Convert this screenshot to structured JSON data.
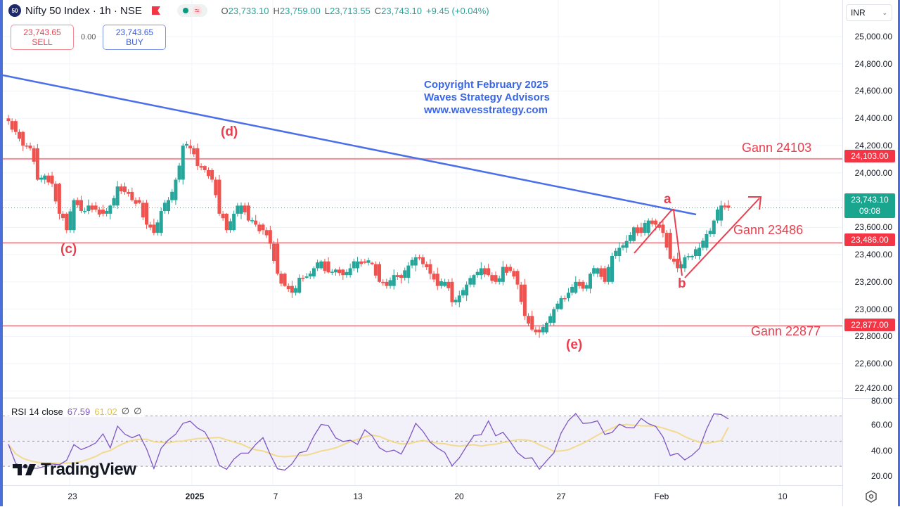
{
  "header": {
    "symbol_logo": "50",
    "symbol_title": "Nifty 50 Index · 1h · NSE",
    "ohlc": {
      "open_label": "O",
      "open": "23,733.10",
      "high_label": "H",
      "high": "23,759.00",
      "low_label": "L",
      "low": "23,713.55",
      "close_label": "C",
      "close": "23,743.10",
      "change": "+9.45 (+0.04%)"
    },
    "wave_icon": "≈"
  },
  "trade": {
    "sell_price": "23,743.65",
    "sell_label": "SELL",
    "spread": "0.00",
    "buy_price": "23,743.65",
    "buy_label": "BUY"
  },
  "watermark": {
    "line1": "Copyright February 2025",
    "line2": "Waves Strategy Advisors",
    "line3": "www.wavesstrategy.com"
  },
  "annotations": {
    "gann_levels": [
      {
        "label": "Gann 24103",
        "price": 24103,
        "badge": "24,103.00"
      },
      {
        "label": "Gann 23486",
        "price": 23486,
        "badge": "23,486.00"
      },
      {
        "label": "Gann 22877",
        "price": 22877,
        "badge": "22,877.00"
      }
    ],
    "wave_labels": [
      "(c)",
      "(d)",
      "(e)",
      "a",
      "b"
    ]
  },
  "price_axis": {
    "currency": "INR",
    "ticks": [
      "25,000.00",
      "24,800.00",
      "24,600.00",
      "24,400.00",
      "24,200.00",
      "24,000.00",
      "23,800.00",
      "23,600.00",
      "23,400.00",
      "23,200.00",
      "23,000.00",
      "22,800.00",
      "22,600.00",
      "22,420.00"
    ],
    "last_price": "23,743.10",
    "countdown": "09:08"
  },
  "rsi": {
    "name": "RSI 14 close",
    "value": "67.59",
    "ma_value": "61.02",
    "hidden1": "∅",
    "hidden2": "∅",
    "ticks": [
      "80.00",
      "60.00",
      "40.00",
      "20.00"
    ]
  },
  "time_axis": {
    "ticks": [
      "23",
      "2025",
      "7",
      "13",
      "20",
      "27",
      "Feb",
      "10"
    ]
  },
  "branding": {
    "name": "TradingView"
  },
  "colors": {
    "up": "#26a69a",
    "down": "#ef5350",
    "gann": "#f28b93",
    "trend": "#4a6fe8",
    "rsi": "#7e57c2",
    "rsi_ma": "#f3d77a"
  },
  "chart_data": {
    "type": "candlestick",
    "title": "Nifty 50 Index · 1h · NSE",
    "ylabel": "INR",
    "ylim": [
      22420,
      25000
    ],
    "x_ticks": [
      "23",
      "2025",
      "7",
      "13",
      "20",
      "27",
      "Feb",
      "10"
    ],
    "approx_closes": [
      24380,
      24300,
      24200,
      24180,
      23950,
      23980,
      23920,
      23700,
      23580,
      23800,
      23720,
      23760,
      23730,
      23700,
      23760,
      23900,
      23860,
      23800,
      23780,
      23620,
      23560,
      23720,
      23800,
      23950,
      24200,
      24180,
      24050,
      24020,
      23950,
      23700,
      23580,
      23700,
      23760,
      23650,
      23620,
      23580,
      23480,
      23260,
      23170,
      23120,
      23230,
      23240,
      23300,
      23350,
      23270,
      23290,
      23250,
      23300,
      23350,
      23340,
      23330,
      23200,
      23170,
      23250,
      23230,
      23320,
      23380,
      23330,
      23260,
      23170,
      23200,
      23050,
      23100,
      23180,
      23250,
      23300,
      23250,
      23200,
      23310,
      23280,
      23180,
      22950,
      22850,
      22830,
      22900,
      23000,
      23080,
      23120,
      23200,
      23150,
      23260,
      23300,
      23200,
      23390,
      23450,
      23500,
      23600,
      23560,
      23650,
      23620,
      23560,
      23370,
      23300,
      23380,
      23390,
      23450,
      23550,
      23650,
      23760,
      23743
    ],
    "gann_levels": [
      24103,
      23486,
      22877
    ],
    "last_close": 23743.1,
    "rsi": {
      "name": "RSI 14 close",
      "last": 67.59,
      "ma_last": 61.02,
      "levels": [
        70,
        50,
        30
      ],
      "ylim": [
        15,
        82
      ]
    }
  }
}
